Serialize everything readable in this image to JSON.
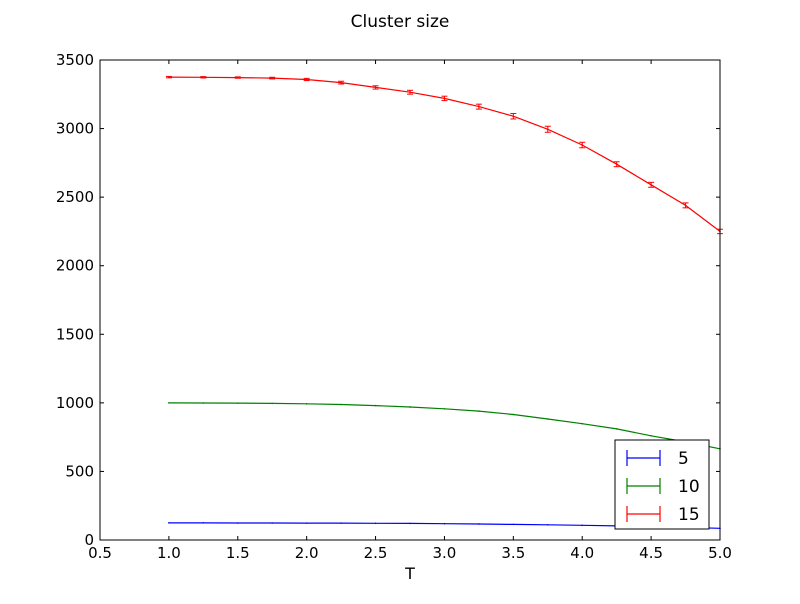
{
  "chart_data": {
    "type": "line",
    "title": "Cluster size",
    "xlabel": "T",
    "ylabel": "",
    "xlim": [
      0.5,
      5.0
    ],
    "ylim": [
      0,
      3500
    ],
    "xticks": [
      0.5,
      1.0,
      1.5,
      2.0,
      2.5,
      3.0,
      3.5,
      4.0,
      4.5,
      5.0
    ],
    "xtick_labels": [
      "0.5",
      "1.0",
      "1.5",
      "2.0",
      "2.5",
      "3.0",
      "3.5",
      "4.0",
      "4.5",
      "5.0"
    ],
    "yticks": [
      0,
      500,
      1000,
      1500,
      2000,
      2500,
      3000,
      3500
    ],
    "ytick_labels": [
      "0",
      "500",
      "1000",
      "1500",
      "2000",
      "2500",
      "3000",
      "3500"
    ],
    "grid": false,
    "legend_position": "lower-right",
    "error_bars": true,
    "x": [
      1.0,
      1.25,
      1.5,
      1.75,
      2.0,
      2.25,
      2.5,
      2.75,
      3.0,
      3.25,
      3.5,
      3.75,
      4.0,
      4.25,
      4.5,
      4.75,
      5.0
    ],
    "series": [
      {
        "name": "5",
        "color": "#0000ff",
        "values": [
          125,
          125,
          124,
          124,
          123,
          123,
          122,
          121,
          119,
          117,
          114,
          111,
          107,
          103,
          98,
          92,
          85
        ]
      },
      {
        "name": "10",
        "color": "#008000",
        "values": [
          1000,
          999,
          998,
          996,
          993,
          988,
          980,
          970,
          957,
          940,
          915,
          882,
          848,
          810,
          760,
          715,
          665
        ]
      },
      {
        "name": "15",
        "color": "#ff0000",
        "values": [
          3375,
          3374,
          3372,
          3368,
          3358,
          3335,
          3300,
          3265,
          3220,
          3160,
          3090,
          2995,
          2880,
          2740,
          2590,
          2440,
          2250
        ],
        "error": [
          5,
          5,
          5,
          6,
          8,
          10,
          12,
          14,
          16,
          18,
          20,
          22,
          20,
          18,
          18,
          18,
          16
        ]
      }
    ]
  }
}
